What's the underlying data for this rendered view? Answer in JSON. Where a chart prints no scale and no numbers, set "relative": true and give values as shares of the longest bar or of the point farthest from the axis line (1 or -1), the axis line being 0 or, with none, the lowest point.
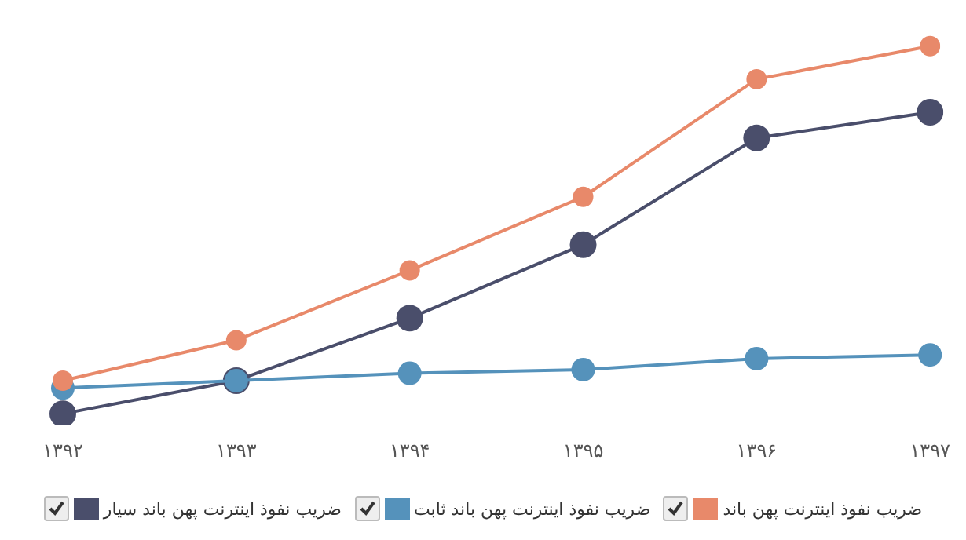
{
  "chart_data": {
    "type": "line",
    "relative": true,
    "categories": [
      "۱۳۹۲",
      "۱۳۹۳",
      "۱۳۹۴",
      "۱۳۹۵",
      "۱۳۹۶",
      "۱۳۹۷"
    ],
    "series": [
      {
        "name": "ضریب نفوذ اینترنت پهن باند",
        "color": "#e8896a",
        "values": [
          0.09,
          0.2,
          0.39,
          0.59,
          0.91,
          1
        ]
      },
      {
        "name": "ضریب نفوذ اینترنت پهن باند ثابت",
        "color": "#5592bb",
        "values": [
          0.07,
          0.09,
          0.11,
          0.12,
          0.15,
          0.16
        ]
      },
      {
        "name": "ضریب نفوذ اینترنت پهن باند سیار",
        "color": "#4a4e6b",
        "values": [
          0,
          0.09,
          0.26,
          0.46,
          0.75,
          0.82
        ]
      }
    ],
    "grid": false,
    "legend": "bottom",
    "marker": "circle",
    "line_style": "solid"
  }
}
